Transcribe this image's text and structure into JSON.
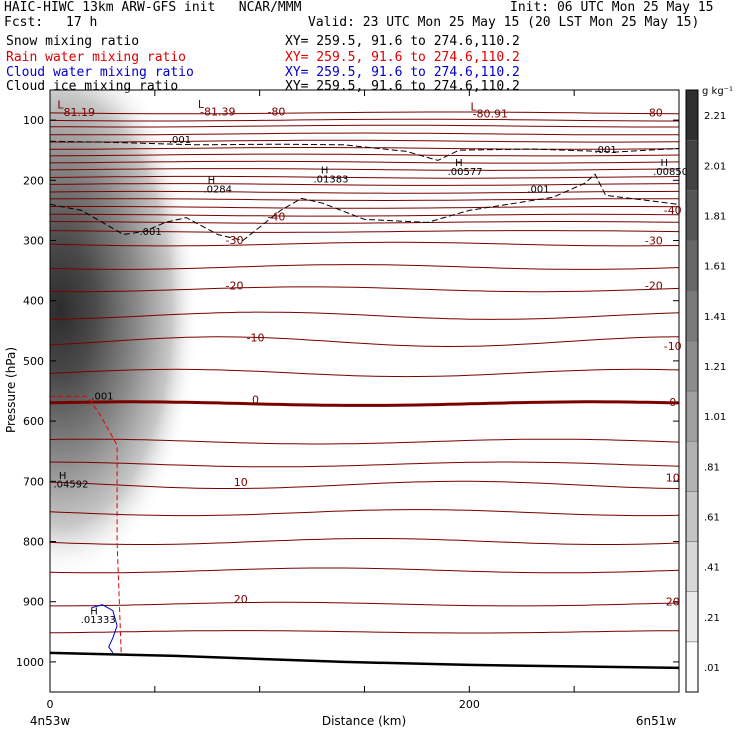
{
  "header": {
    "line1_left": "HAIC-HIWC 13km ARW-GFS init   NCAR/MMM",
    "line1_right": "Init: 06 UTC Mon 25 May 15",
    "fcst_label": "Fcst:",
    "fcst_value": "17 h",
    "valid": "Valid: 23 UTC Mon 25 May 15 (20 LST Mon 25 May 15)"
  },
  "legend": [
    {
      "name": "Snow mixing ratio",
      "xy": "XY= 259.5, 91.6 to 274.6,110.2",
      "color": "#000000"
    },
    {
      "name": "Rain water mixing ratio",
      "xy": "XY= 259.5, 91.6 to 274.6,110.2",
      "color": "#e00000"
    },
    {
      "name": "Cloud water mixing ratio",
      "xy": "XY= 259.5, 91.6 to 274.6,110.2",
      "color": "#0000cc"
    },
    {
      "name": "Cloud ice mixing ratio",
      "xy": "XY= 259.5, 91.6 to 274.6,110.2",
      "color": "#000000"
    }
  ],
  "chart_data": {
    "type": "heatmap",
    "xlabel": "Distance (km)",
    "ylabel": "Pressure (hPa)",
    "xlim": [
      0,
      300
    ],
    "ylim": [
      1050,
      50
    ],
    "x_ticks": [
      0,
      200
    ],
    "y_ticks": [
      100,
      200,
      300,
      400,
      500,
      600,
      700,
      800,
      900,
      1000
    ],
    "x_endpoints": {
      "left": "4n53w",
      "right": "6n51w"
    },
    "colorbar": {
      "units": "g kg⁻¹",
      "ticks": [
        ".01",
        ".21",
        ".41",
        ".61",
        ".81",
        "1.01",
        "1.21",
        "1.41",
        "1.61",
        "1.81",
        "2.01",
        "2.21"
      ]
    },
    "snow_max_region": {
      "x": 5,
      "p": 320,
      "value_g_per_kg": 2.0
    },
    "temperature_contours_c": [
      -80,
      -40,
      -30,
      -20,
      -10,
      0,
      10,
      20
    ],
    "temperature_labels": [
      {
        "text": "-80",
        "x": 108,
        "p": 92
      },
      {
        "text": "-80",
        "x": 288,
        "p": 94
      },
      {
        "text": "-40",
        "x": 108,
        "p": 267
      },
      {
        "text": "-40",
        "x": 297,
        "p": 256
      },
      {
        "text": "-30",
        "x": 88,
        "p": 306
      },
      {
        "text": "-30",
        "x": 288,
        "p": 307
      },
      {
        "text": "-20",
        "x": 88,
        "p": 381
      },
      {
        "text": "-20",
        "x": 288,
        "p": 381
      },
      {
        "text": "-10",
        "x": 98,
        "p": 468
      },
      {
        "text": "-10",
        "x": 297,
        "p": 482
      },
      {
        "text": "0",
        "x": 98,
        "p": 571
      },
      {
        "text": "0",
        "x": 297,
        "p": 575
      },
      {
        "text": "10",
        "x": 91,
        "p": 708
      },
      {
        "text": "10",
        "x": 297,
        "p": 700
      },
      {
        "text": "20",
        "x": 91,
        "p": 902
      },
      {
        "text": "20",
        "x": 297,
        "p": 906
      }
    ],
    "pressure_extrema": [
      {
        "type": "L",
        "value": "-81.19",
        "x": 8,
        "p": 93
      },
      {
        "type": "L",
        "value": "-81.39",
        "x": 75,
        "p": 92
      },
      {
        "type": "L",
        "value": "-80.91",
        "x": 205,
        "p": 96
      }
    ],
    "snow_max_labels": [
      {
        "type": "H",
        "value": ".0284",
        "x": 77,
        "p": 220
      },
      {
        "type": "H",
        "value": ".01383",
        "x": 131,
        "p": 204
      },
      {
        "type": "H",
        "value": ".00577",
        "x": 195,
        "p": 191
      },
      {
        "type": "H",
        "value": ".00850",
        "x": 293,
        "p": 191
      }
    ],
    "ice_contour_labels": [
      {
        "text": ".001",
        "x": 62,
        "p": 138
      },
      {
        "text": ".001",
        "x": 265,
        "p": 155
      },
      {
        "text": ".001",
        "x": 233,
        "p": 220
      },
      {
        "text": ".001",
        "x": 48,
        "p": 291
      }
    ],
    "rain_water": {
      "contour": ".001",
      "max_label": "H",
      "max_value": ".04592",
      "max_x": 8,
      "max_p": 710
    },
    "cloud_water": {
      "max_label": "H",
      "max_value": ".01333",
      "max_x": 25,
      "max_p": 935
    }
  }
}
